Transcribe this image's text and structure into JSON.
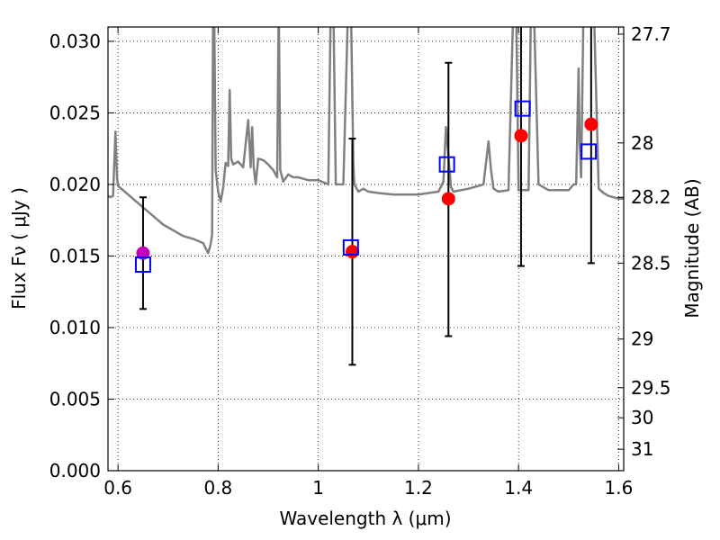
{
  "chart_data": {
    "type": "scatter",
    "xlabel": "Wavelength  λ (μm)",
    "ylabel": "Flux  Fν  ( μJy )",
    "ylabel_right": "Magnitude (AB)",
    "xlim": [
      0.58,
      1.61
    ],
    "ylim": [
      0.0,
      0.031
    ],
    "grid": true,
    "x_ticks": [
      0.6,
      0.8,
      1.0,
      1.2,
      1.4,
      1.6
    ],
    "x_tick_labels": [
      "0.6",
      "0.8",
      "1",
      "1.2",
      "1.4",
      "1.6"
    ],
    "y_ticks": [
      0.0,
      0.005,
      0.01,
      0.015,
      0.02,
      0.025,
      0.03
    ],
    "y_tick_labels": [
      "0.000",
      "0.005",
      "0.010",
      "0.015",
      "0.020",
      "0.025",
      "0.030"
    ],
    "right_ticks": [
      {
        "flux": 0.0305,
        "label": "27.7"
      },
      {
        "flux": 0.0229,
        "label": "28"
      },
      {
        "flux": 0.0191,
        "label": "28.2"
      },
      {
        "flux": 0.0145,
        "label": "28.5"
      },
      {
        "flux": 0.0092,
        "label": "29"
      },
      {
        "flux": 0.0058,
        "label": "29.5"
      },
      {
        "flux": 0.0037,
        "label": "30"
      },
      {
        "flux": 0.0015,
        "label": "31"
      }
    ],
    "series": [
      {
        "kind": "model-spectrum",
        "color": "#808080",
        "x": [
          0.58,
          0.585,
          0.59,
          0.595,
          0.598,
          0.6,
          0.603,
          0.61,
          0.63,
          0.65,
          0.67,
          0.69,
          0.71,
          0.73,
          0.75,
          0.77,
          0.78,
          0.785,
          0.788,
          0.79,
          0.792,
          0.795,
          0.8,
          0.805,
          0.81,
          0.815,
          0.82,
          0.823,
          0.826,
          0.83,
          0.84,
          0.85,
          0.86,
          0.865,
          0.868,
          0.871,
          0.875,
          0.88,
          0.89,
          0.9,
          0.91,
          0.918,
          0.921,
          0.924,
          0.93,
          0.94,
          0.95,
          0.96,
          0.97,
          0.98,
          1.0,
          1.02,
          1.025,
          1.03,
          1.035,
          1.05,
          1.06,
          1.065,
          1.07,
          1.072,
          1.08,
          1.09,
          1.1,
          1.12,
          1.15,
          1.18,
          1.2,
          1.22,
          1.24,
          1.25,
          1.255,
          1.26,
          1.265,
          1.27,
          1.3,
          1.32,
          1.33,
          1.34,
          1.345,
          1.35,
          1.36,
          1.38,
          1.39,
          1.395,
          1.4,
          1.42,
          1.425,
          1.43,
          1.44,
          1.46,
          1.48,
          1.5,
          1.51,
          1.515,
          1.52,
          1.522,
          1.525,
          1.53,
          1.55,
          1.56,
          1.57,
          1.58,
          1.6,
          1.61
        ],
        "y": [
          0.0192,
          0.0191,
          0.0192,
          0.0237,
          0.0205,
          0.0199,
          0.0198,
          0.0196,
          0.019,
          0.0184,
          0.0178,
          0.0172,
          0.0168,
          0.0164,
          0.0162,
          0.0159,
          0.0152,
          0.0158,
          0.0165,
          0.033,
          0.033,
          0.021,
          0.0195,
          0.0188,
          0.0198,
          0.0215,
          0.0213,
          0.0266,
          0.0218,
          0.0214,
          0.0216,
          0.0212,
          0.0245,
          0.0212,
          0.024,
          0.0212,
          0.02,
          0.0218,
          0.0217,
          0.0214,
          0.021,
          0.0205,
          0.033,
          0.021,
          0.0202,
          0.0207,
          0.0205,
          0.0205,
          0.0204,
          0.0203,
          0.0203,
          0.02,
          0.033,
          0.033,
          0.02,
          0.02,
          0.033,
          0.033,
          0.0215,
          0.02,
          0.0195,
          0.0197,
          0.0195,
          0.0194,
          0.0193,
          0.0193,
          0.0193,
          0.0194,
          0.0195,
          0.0202,
          0.024,
          0.022,
          0.0198,
          0.0195,
          0.0197,
          0.0199,
          0.02,
          0.023,
          0.021,
          0.0197,
          0.0195,
          0.0196,
          0.033,
          0.033,
          0.0196,
          0.0196,
          0.033,
          0.033,
          0.02,
          0.0196,
          0.0196,
          0.0196,
          0.02,
          0.02,
          0.0281,
          0.023,
          0.0205,
          0.033,
          0.033,
          0.0197,
          0.0194,
          0.0192,
          0.019,
          0.019
        ]
      },
      {
        "kind": "observed-flux",
        "marker": "circle",
        "color": "#ff0000",
        "x": [
          1.068,
          1.26,
          1.405,
          1.545
        ],
        "y": [
          0.0153,
          0.019,
          0.0234,
          0.0242
        ]
      },
      {
        "kind": "observed-flux-highlight",
        "marker": "circle",
        "color": "#bf00bf",
        "x": [
          0.65
        ],
        "y": [
          0.0152
        ]
      },
      {
        "kind": "model-flux",
        "marker": "square",
        "color": "#0000ff",
        "x": [
          0.65,
          1.065,
          1.257,
          1.408,
          1.54
        ],
        "y": [
          0.0144,
          0.0156,
          0.0214,
          0.0253,
          0.0223
        ]
      },
      {
        "kind": "errorbars",
        "color": "#000000",
        "x": [
          0.65,
          1.068,
          1.26,
          1.405,
          1.545
        ],
        "y": [
          0.0152,
          0.0153,
          0.019,
          0.0234,
          0.0242
        ],
        "ylow": [
          0.0113,
          0.0074,
          0.0094,
          0.0143,
          0.0145
        ],
        "yhigh": [
          0.0191,
          0.0232,
          0.0285,
          0.033,
          0.033
        ]
      }
    ]
  }
}
